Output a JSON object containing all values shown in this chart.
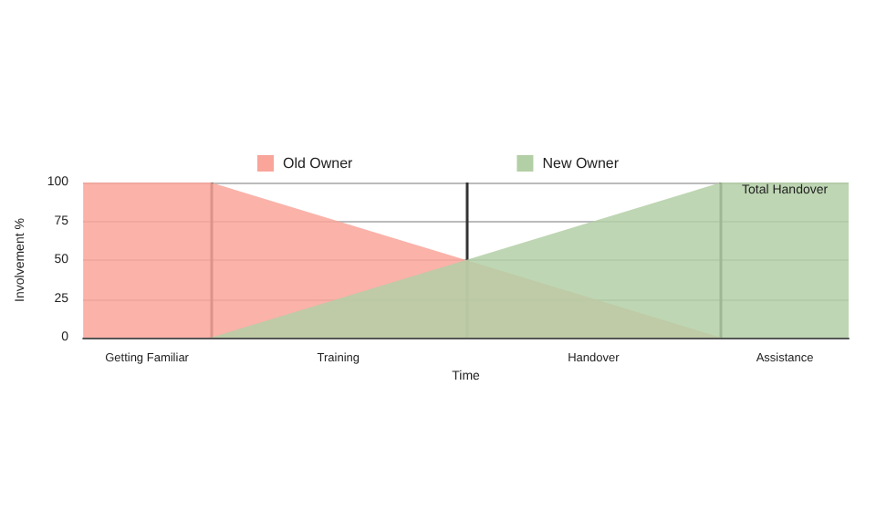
{
  "chart_data": {
    "type": "area",
    "xlabel": "Time",
    "ylabel": "Involvement %",
    "categories": [
      null,
      "Getting Familiar",
      null,
      null,
      "Training",
      null,
      null,
      null,
      "Handover",
      null,
      null,
      "Assistance",
      null
    ],
    "series": [
      {
        "name": "Old Owner",
        "color": "#f9a59a",
        "values": [
          100,
          100,
          100,
          87.5,
          75,
          62.5,
          50,
          37.5,
          25,
          12.5,
          0,
          null,
          null
        ]
      },
      {
        "name": "New Owner",
        "color": "#b3cfa6",
        "values": [
          null,
          null,
          0,
          12.5,
          25,
          37.5,
          50,
          62.5,
          75,
          87.5,
          100,
          100,
          100
        ]
      }
    ],
    "ylim": [
      0,
      100
    ],
    "yticks": [
      0,
      25,
      50,
      75,
      100
    ],
    "annotations": [
      {
        "text": "Total Handover",
        "x": "Assistance",
        "y": 95
      }
    ],
    "grid": true,
    "legend": "top"
  }
}
